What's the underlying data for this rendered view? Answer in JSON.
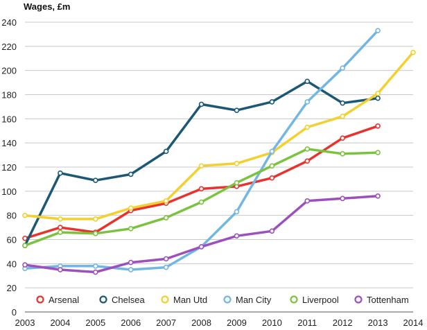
{
  "chart_data": {
    "type": "line",
    "title": "Wages, £m",
    "xlabel": "",
    "ylabel": "",
    "x": [
      "2003",
      "2004",
      "2005",
      "2006",
      "2007",
      "2008",
      "2009",
      "2010",
      "2011",
      "2012",
      "2013",
      "2014"
    ],
    "ylim": [
      0,
      240
    ],
    "yticks": [
      "0",
      "20",
      "40",
      "60",
      "80",
      "100",
      "120",
      "140",
      "160",
      "180",
      "200",
      "220",
      "240"
    ],
    "grid": true,
    "legend_position": "bottom",
    "series": [
      {
        "name": "Arsenal",
        "color": "#e8322e",
        "values": [
          61,
          70,
          66,
          84,
          90,
          102,
          104,
          111,
          125,
          144,
          154,
          null
        ]
      },
      {
        "name": "Chelsea",
        "color": "#1b5876",
        "values": [
          55,
          115,
          109,
          114,
          133,
          172,
          167,
          174,
          191,
          173,
          177,
          null
        ]
      },
      {
        "name": "Man Utd",
        "color": "#f3d02e",
        "values": [
          80,
          77,
          77,
          86,
          92,
          121,
          123,
          132,
          153,
          162,
          181,
          215
        ]
      },
      {
        "name": "Man City",
        "color": "#72b6e3",
        "values": [
          36,
          38,
          38,
          35,
          37,
          54,
          83,
          133,
          174,
          202,
          233,
          null
        ]
      },
      {
        "name": "Liverpool",
        "color": "#7bc23f",
        "values": [
          55,
          66,
          65,
          69,
          78,
          91,
          107,
          121,
          135,
          131,
          132,
          null
        ]
      },
      {
        "name": "Tottenham",
        "color": "#9e4fbe",
        "values": [
          39,
          35,
          33,
          41,
          44,
          54,
          63,
          67,
          92,
          94,
          96,
          null
        ]
      }
    ]
  }
}
